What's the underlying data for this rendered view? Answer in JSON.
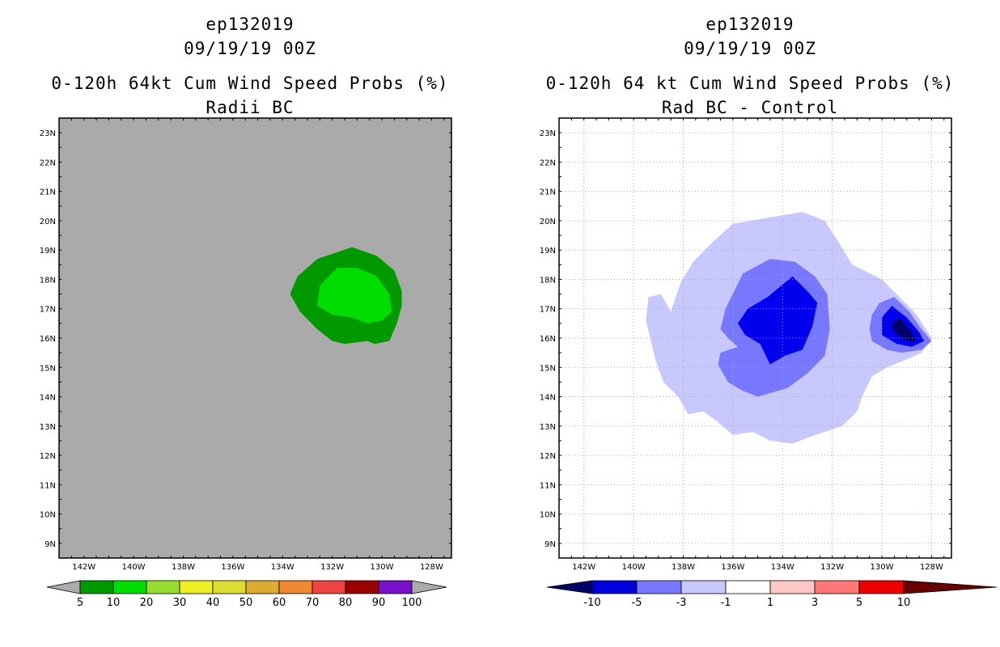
{
  "panels": [
    {
      "title_line1": "ep132019",
      "title_line2": "09/19/19 00Z",
      "title_line3": "0-120h 64kt Cum Wind Speed Probs (%)",
      "subtitle": "Radii BC"
    },
    {
      "title_line1": "ep132019",
      "title_line2": "09/19/19 00Z",
      "title_line3": "0-120h 64 kt Cum Wind Speed Probs (%)",
      "subtitle": "Rad BC - Control"
    }
  ],
  "colors": {
    "background_gray": "#aaaaaa",
    "green_dark": "#009900",
    "green_light": "#00dd00",
    "blue_lightest": "#c8c8ff",
    "blue_light": "#7777ff",
    "blue_mid": "#0000ee",
    "blue_dark": "#000066"
  },
  "chart_data": [
    {
      "type": "contour-map",
      "title": "0-120h 64kt Cum Wind Speed Probs (%)",
      "subtitle": "Radii BC",
      "x_ticks": [
        "142W",
        "140W",
        "138W",
        "136W",
        "134W",
        "132W",
        "130W",
        "128W"
      ],
      "y_ticks": [
        "23N",
        "22N",
        "21N",
        "20N",
        "19N",
        "18N",
        "17N",
        "16N",
        "15N",
        "14N",
        "13N",
        "12N",
        "11N",
        "10N",
        "9N"
      ],
      "lon_range": [
        -143,
        -127.2
      ],
      "lat_range": [
        8.5,
        23.5
      ],
      "grid": false,
      "colorbar": {
        "labels": [
          "5",
          "10",
          "20",
          "30",
          "40",
          "50",
          "60",
          "70",
          "80",
          "90",
          "100"
        ],
        "colors": [
          "#009900",
          "#00dd00",
          "#99dd33",
          "#eeee22",
          "#dddd33",
          "#ddaa33",
          "#ee8833",
          "#ee4444",
          "#990000",
          "#7711cc"
        ],
        "under_color": "#aaaaaa",
        "over_color": "#aaaaaa"
      },
      "contours": [
        {
          "level": "5-10",
          "color": "#009900",
          "points": [
            [
              -133.7,
              17.5
            ],
            [
              -133.4,
              18.1
            ],
            [
              -132.6,
              18.7
            ],
            [
              -131.2,
              19.1
            ],
            [
              -130.2,
              18.8
            ],
            [
              -129.5,
              18.3
            ],
            [
              -129.2,
              17.6
            ],
            [
              -129.2,
              17.1
            ],
            [
              -129.4,
              16.5
            ],
            [
              -129.7,
              15.9
            ],
            [
              -130.3,
              15.8
            ],
            [
              -130.6,
              15.9
            ],
            [
              -131.5,
              15.8
            ],
            [
              -132.0,
              15.9
            ],
            [
              -132.6,
              16.3
            ],
            [
              -133.3,
              16.9
            ]
          ]
        },
        {
          "level": "10-20",
          "color": "#00dd00",
          "points": [
            [
              -132.6,
              17.1
            ],
            [
              -132.5,
              17.8
            ],
            [
              -131.8,
              18.4
            ],
            [
              -131.0,
              18.4
            ],
            [
              -130.2,
              18.1
            ],
            [
              -129.7,
              17.5
            ],
            [
              -129.6,
              16.9
            ],
            [
              -130.0,
              16.6
            ],
            [
              -130.6,
              16.5
            ],
            [
              -131.2,
              16.7
            ],
            [
              -132.0,
              16.8
            ]
          ]
        }
      ]
    },
    {
      "type": "contour-map",
      "title": "0-120h 64 kt Cum Wind Speed Probs (%)",
      "subtitle": "Rad BC - Control",
      "x_ticks": [
        "142W",
        "140W",
        "138W",
        "136W",
        "134W",
        "132W",
        "130W",
        "128W"
      ],
      "y_ticks": [
        "23N",
        "22N",
        "21N",
        "20N",
        "19N",
        "18N",
        "17N",
        "16N",
        "15N",
        "14N",
        "13N",
        "12N",
        "11N",
        "10N",
        "9N"
      ],
      "lon_range": [
        -143,
        -127.2
      ],
      "lat_range": [
        8.5,
        23.5
      ],
      "grid": true,
      "colorbar": {
        "labels": [
          "-10",
          "-5",
          "-3",
          "-1",
          "1",
          "3",
          "5",
          "10"
        ],
        "colors": [
          "#0000dd",
          "#7777ff",
          "#c8c8ff",
          "#ffffff",
          "#ffc8c8",
          "#ff7777",
          "#ee0000"
        ],
        "under_color": "#000066",
        "over_color": "#660000"
      },
      "contours": [
        {
          "level": "-3 to -1",
          "color": "#c8c8ff",
          "points": [
            [
              -139.5,
              16.6
            ],
            [
              -139.4,
              17.4
            ],
            [
              -138.9,
              17.5
            ],
            [
              -138.5,
              16.9
            ],
            [
              -138.1,
              17.9
            ],
            [
              -137.6,
              18.6
            ],
            [
              -136.9,
              19.2
            ],
            [
              -136.0,
              19.9
            ],
            [
              -134.6,
              20.1
            ],
            [
              -133.2,
              20.3
            ],
            [
              -132.3,
              20.0
            ],
            [
              -131.7,
              19.2
            ],
            [
              -131.2,
              18.5
            ],
            [
              -130.0,
              18.0
            ],
            [
              -129.3,
              17.4
            ],
            [
              -128.6,
              16.8
            ],
            [
              -128.0,
              16.0
            ],
            [
              -128.4,
              15.5
            ],
            [
              -129.2,
              15.2
            ],
            [
              -129.8,
              15.0
            ],
            [
              -130.4,
              14.7
            ],
            [
              -130.8,
              14.0
            ],
            [
              -131.0,
              13.5
            ],
            [
              -131.6,
              13.0
            ],
            [
              -132.3,
              12.8
            ],
            [
              -133.0,
              12.6
            ],
            [
              -133.6,
              12.4
            ],
            [
              -134.5,
              12.5
            ],
            [
              -135.2,
              12.8
            ],
            [
              -136.0,
              12.7
            ],
            [
              -136.7,
              13.2
            ],
            [
              -137.2,
              13.5
            ],
            [
              -137.8,
              13.4
            ],
            [
              -138.2,
              14.0
            ],
            [
              -138.8,
              14.5
            ],
            [
              -139.1,
              15.2
            ],
            [
              -139.3,
              15.9
            ]
          ]
        },
        {
          "level": "-5 to -3",
          "color": "#7777ff",
          "points": [
            [
              -136.5,
              16.3
            ],
            [
              -136.3,
              17.0
            ],
            [
              -135.6,
              18.2
            ],
            [
              -134.5,
              18.7
            ],
            [
              -133.5,
              18.6
            ],
            [
              -132.7,
              18.1
            ],
            [
              -132.2,
              17.5
            ],
            [
              -132.1,
              16.3
            ],
            [
              -132.3,
              15.4
            ],
            [
              -133.0,
              14.8
            ],
            [
              -133.8,
              14.3
            ],
            [
              -135.0,
              14.0
            ],
            [
              -135.6,
              14.2
            ],
            [
              -136.2,
              14.5
            ],
            [
              -136.6,
              15.1
            ],
            [
              -136.5,
              15.5
            ],
            [
              -135.8,
              15.7
            ],
            [
              -136.2,
              16.0
            ]
          ]
        },
        {
          "level": "-10 to -5",
          "color": "#0000ee",
          "points": [
            [
              -135.8,
              16.5
            ],
            [
              -135.4,
              17.0
            ],
            [
              -134.6,
              17.4
            ],
            [
              -133.6,
              18.1
            ],
            [
              -133.0,
              17.6
            ],
            [
              -132.6,
              17.2
            ],
            [
              -132.8,
              16.4
            ],
            [
              -133.2,
              15.6
            ],
            [
              -133.9,
              15.4
            ],
            [
              -134.5,
              15.1
            ],
            [
              -134.9,
              15.8
            ],
            [
              -135.5,
              16.1
            ]
          ]
        },
        {
          "level": "-5 to -3 east",
          "color": "#7777ff",
          "points": [
            [
              -130.4,
              16.8
            ],
            [
              -130.1,
              17.2
            ],
            [
              -129.5,
              17.4
            ],
            [
              -128.9,
              16.9
            ],
            [
              -128.4,
              16.3
            ],
            [
              -128.0,
              15.9
            ],
            [
              -128.4,
              15.6
            ],
            [
              -129.2,
              15.5
            ],
            [
              -129.8,
              15.6
            ],
            [
              -130.4,
              15.9
            ],
            [
              -130.5,
              16.3
            ]
          ]
        },
        {
          "level": "-10 to -5 east",
          "color": "#0000ee",
          "points": [
            [
              -130.0,
              16.7
            ],
            [
              -129.6,
              17.1
            ],
            [
              -129.0,
              16.7
            ],
            [
              -128.5,
              16.2
            ],
            [
              -128.3,
              15.9
            ],
            [
              -128.8,
              15.7
            ],
            [
              -129.4,
              15.8
            ],
            [
              -130.0,
              16.1
            ]
          ]
        },
        {
          "level": "< -10",
          "color": "#000066",
          "points": [
            [
              -129.6,
              16.5
            ],
            [
              -129.3,
              16.7
            ],
            [
              -128.8,
              16.2
            ],
            [
              -128.6,
              15.9
            ],
            [
              -129.0,
              15.9
            ],
            [
              -129.5,
              16.2
            ]
          ]
        }
      ]
    }
  ]
}
